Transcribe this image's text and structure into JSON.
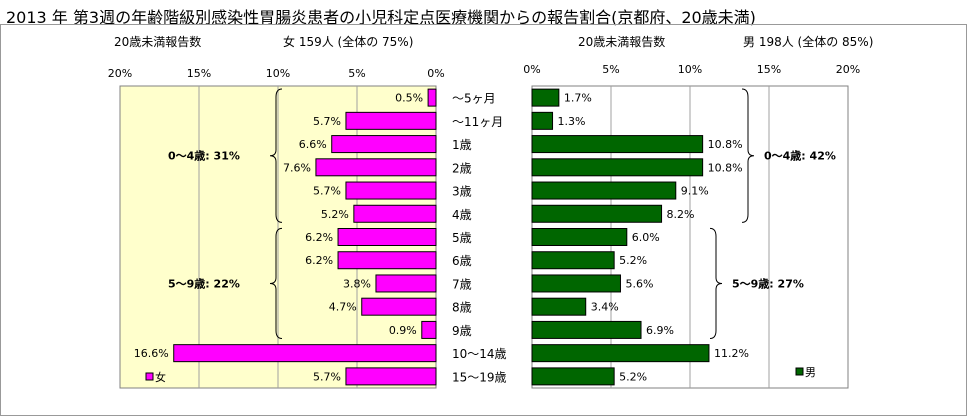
{
  "title": "2013 年 第3週の年齢階級別感染性胃腸炎患者の小児科定点医療機関からの報告割合(京都府、20歳未満)",
  "female_panel": {
    "reports_label": "20歳未満報告数",
    "summary": "女  159人  (全体の  75%)"
  },
  "male_panel": {
    "reports_label": "20歳未満報告数",
    "summary": "男  198人  (全体の  85%)"
  },
  "chart_data": [
    {
      "type": "bar",
      "orientation": "horizontal",
      "direction": "reversed",
      "categories": [
        "〜5ヶ月",
        "〜11ヶ月",
        "1歳",
        "2歳",
        "3歳",
        "4歳",
        "5歳",
        "6歳",
        "7歳",
        "8歳",
        "9歳",
        "10〜14歳",
        "15〜19歳"
      ],
      "series": [
        {
          "name": "女",
          "values": [
            0.5,
            5.7,
            6.6,
            7.6,
            5.7,
            5.2,
            6.2,
            6.2,
            3.8,
            4.7,
            0.9,
            16.6,
            5.7
          ],
          "color": "#ff00ff"
        }
      ],
      "xlim": [
        0,
        20
      ],
      "xticks": [
        "20%",
        "15%",
        "10%",
        "5%",
        "0%"
      ],
      "grid": true,
      "plot_background": "#ffffcc",
      "legend": "bottom-left",
      "annotations": [
        {
          "text": "0〜4歳: 31%",
          "range": [
            0,
            5
          ]
        },
        {
          "text": "5〜9歳: 22%",
          "range": [
            6,
            10
          ]
        }
      ]
    },
    {
      "type": "bar",
      "orientation": "horizontal",
      "categories": [
        "〜5ヶ月",
        "〜11ヶ月",
        "1歳",
        "2歳",
        "3歳",
        "4歳",
        "5歳",
        "6歳",
        "7歳",
        "8歳",
        "9歳",
        "10〜14歳",
        "15〜19歳"
      ],
      "series": [
        {
          "name": "男",
          "values": [
            1.7,
            1.3,
            10.8,
            10.8,
            9.1,
            8.2,
            6.0,
            5.2,
            5.6,
            3.4,
            6.9,
            11.2,
            5.2
          ],
          "color": "#006600"
        }
      ],
      "xlim": [
        0,
        20
      ],
      "xticks": [
        "0%",
        "5%",
        "10%",
        "15%",
        "20%"
      ],
      "grid": true,
      "plot_background": "#ffffff",
      "legend": "bottom-right",
      "annotations": [
        {
          "text": "0〜4歳: 42%",
          "range": [
            0,
            5
          ]
        },
        {
          "text": "5〜9歳: 27%",
          "range": [
            6,
            10
          ]
        }
      ]
    }
  ]
}
